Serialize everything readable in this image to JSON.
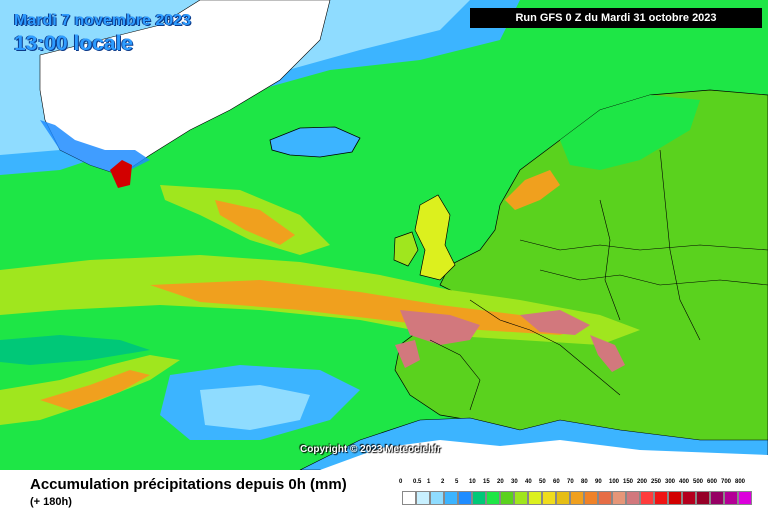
{
  "header": {
    "date": "Mardi 7 novembre 2023",
    "time": "13:00 locale"
  },
  "run_banner": "Run GFS 0 Z du Mardi 31 octobre 2023",
  "copyright": "Copyright © 2023 Meteociel.fr",
  "legend": {
    "title": "Accumulation précipitations depuis 0h (mm)",
    "subtitle": "(+ 180h)",
    "scale": [
      {
        "label": "0",
        "color": "#ffffff"
      },
      {
        "label": "0.5",
        "color": "#c8f0ff"
      },
      {
        "label": "1",
        "color": "#8fdcff"
      },
      {
        "label": "2",
        "color": "#3cb4ff"
      },
      {
        "label": "5",
        "color": "#1e8cff"
      },
      {
        "label": "10",
        "color": "#00c878"
      },
      {
        "label": "15",
        "color": "#1ee646"
      },
      {
        "label": "20",
        "color": "#5ad21e"
      },
      {
        "label": "30",
        "color": "#a0e61e"
      },
      {
        "label": "40",
        "color": "#dcf01e"
      },
      {
        "label": "50",
        "color": "#f0dc1e"
      },
      {
        "label": "60",
        "color": "#e6be14"
      },
      {
        "label": "70",
        "color": "#f0a01e"
      },
      {
        "label": "80",
        "color": "#f08228"
      },
      {
        "label": "90",
        "color": "#e66e46"
      },
      {
        "label": "100",
        "color": "#e69678"
      },
      {
        "label": "150",
        "color": "#d2787d"
      },
      {
        "label": "200",
        "color": "#ff3c3c"
      },
      {
        "label": "250",
        "color": "#f01414"
      },
      {
        "label": "300",
        "color": "#d20000"
      },
      {
        "label": "400",
        "color": "#b4001e"
      },
      {
        "label": "500",
        "color": "#960028"
      },
      {
        "label": "600",
        "color": "#960064"
      },
      {
        "label": "700",
        "color": "#b40096"
      },
      {
        "label": "800",
        "color": "#dc00dc"
      }
    ]
  },
  "colors": {
    "ocean_base": "#1ee646",
    "greenland_ice": "#ffffff",
    "europe_land": "#5ad21e",
    "wet_band": "#a0e61e",
    "heavy_rain": "#f08228",
    "extreme_rain": "#d2787d",
    "borders": "#000000"
  }
}
